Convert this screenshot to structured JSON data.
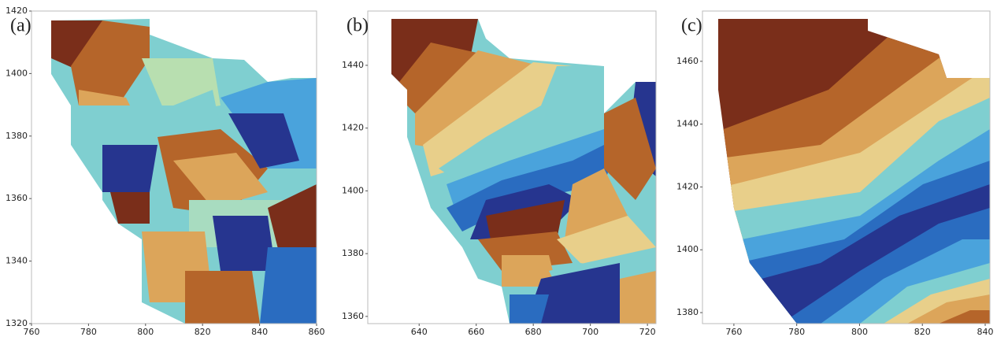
{
  "chart_data": [
    {
      "type": "heatmap",
      "label": "(a)",
      "xlim": [
        760,
        860
      ],
      "ylim": [
        1320,
        1420
      ],
      "xticks": [
        760,
        780,
        800,
        820,
        840,
        860
      ],
      "yticks": [
        1320,
        1340,
        1360,
        1380,
        1400,
        1420
      ]
    },
    {
      "type": "heatmap",
      "label": "(b)",
      "xlim": [
        622,
        723
      ],
      "ylim": [
        1357.7,
        1457.3
      ],
      "xticks": [
        640,
        660,
        680,
        700,
        720
      ],
      "yticks": [
        1360,
        1380,
        1400,
        1420,
        1440
      ]
    },
    {
      "type": "heatmap",
      "label": "(c)",
      "xlim": [
        750,
        841.5
      ],
      "ylim": [
        1376.5,
        1476
      ],
      "xticks": [
        760,
        780,
        800,
        820,
        840
      ],
      "yticks": [
        1380,
        1400,
        1420,
        1440,
        1460
      ]
    }
  ]
}
